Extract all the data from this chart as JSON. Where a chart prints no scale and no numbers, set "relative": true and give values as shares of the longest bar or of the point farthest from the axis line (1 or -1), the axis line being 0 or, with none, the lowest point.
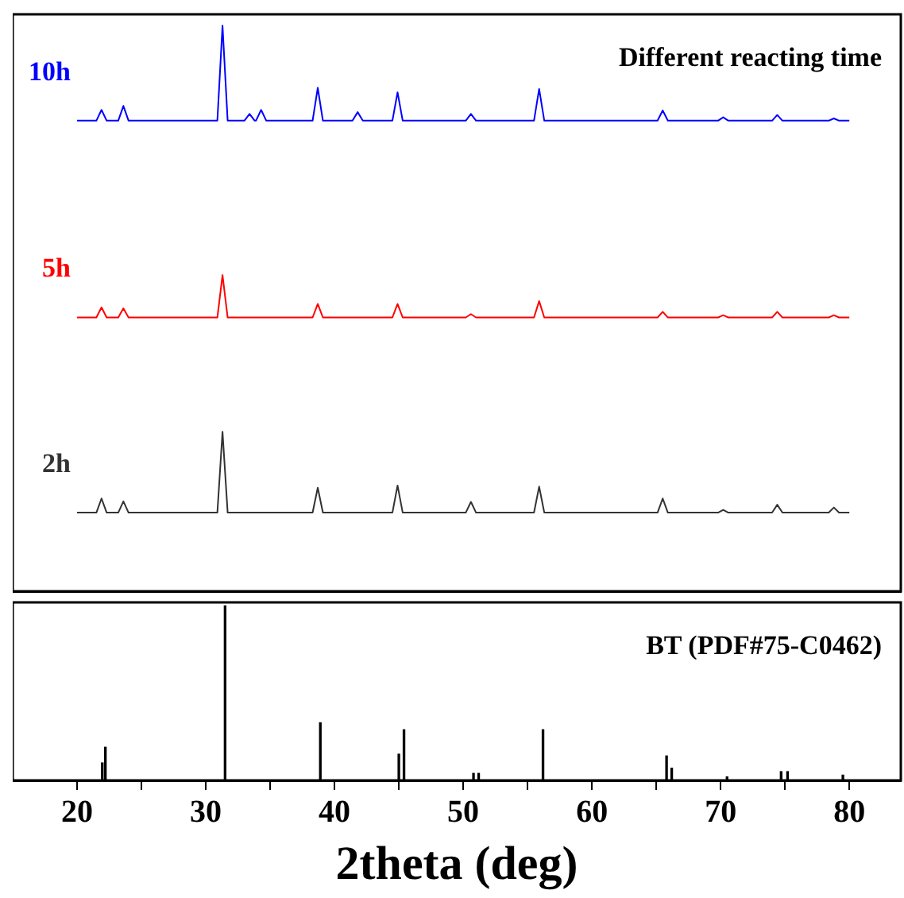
{
  "chart_data": [
    {
      "type": "line",
      "relative": true,
      "xlim": [
        15,
        84
      ],
      "tick_labels": false,
      "marker": "none",
      "annotations": [
        "Different reacting time"
      ],
      "series": [
        {
          "name": "10h",
          "color": "#0000ff",
          "x": [
            20,
            21.5,
            21.9,
            22.3,
            23.2,
            23.6,
            24,
            30.9,
            31.3,
            31.7,
            33,
            33.4,
            33.8,
            33.9,
            34.3,
            34.7,
            38.3,
            38.7,
            39.1,
            41.4,
            41.8,
            42.2,
            44.5,
            44.9,
            45.3,
            50.2,
            50.6,
            51,
            55.5,
            55.9,
            56.3,
            65.1,
            65.5,
            65.9,
            69.8,
            70.2,
            70.6,
            74,
            74.4,
            74.8,
            78.4,
            78.8,
            79.2,
            80
          ],
          "values": [
            0.832,
            0.832,
            0.851,
            0.832,
            0.832,
            0.858,
            0.832,
            0.832,
            1,
            0.832,
            0.832,
            0.844,
            0.832,
            0.832,
            0.851,
            0.832,
            0.832,
            0.89,
            0.832,
            0.832,
            0.847,
            0.832,
            0.832,
            0.882,
            0.832,
            0.832,
            0.844,
            0.832,
            0.832,
            0.888,
            0.832,
            0.832,
            0.85,
            0.832,
            0.832,
            0.838,
            0.832,
            0.832,
            0.842,
            0.832,
            0.832,
            0.836,
            0.832,
            0.832
          ]
        },
        {
          "name": "5h",
          "color": "#ff0000",
          "x": [
            20,
            21.5,
            21.9,
            22.3,
            23.2,
            23.6,
            24,
            30.9,
            31.3,
            31.7,
            38.3,
            38.7,
            39.1,
            44.5,
            44.9,
            45.3,
            50.2,
            50.6,
            51,
            55.5,
            55.9,
            56.3,
            65.1,
            65.5,
            65.9,
            69.8,
            70.2,
            70.6,
            74,
            74.4,
            74.8,
            78.4,
            78.8,
            79.2,
            80
          ],
          "values": [
            0.484,
            0.484,
            0.502,
            0.484,
            0.484,
            0.5,
            0.484,
            0.484,
            0.559,
            0.484,
            0.484,
            0.508,
            0.484,
            0.484,
            0.508,
            0.484,
            0.484,
            0.49,
            0.484,
            0.484,
            0.513,
            0.484,
            0.484,
            0.494,
            0.484,
            0.484,
            0.488,
            0.484,
            0.484,
            0.494,
            0.484,
            0.484,
            0.488,
            0.484,
            0.484
          ]
        },
        {
          "name": "2h",
          "color": "#333333",
          "x": [
            20,
            21.5,
            21.9,
            22.3,
            23.2,
            23.6,
            24,
            30.9,
            31.3,
            31.7,
            38.3,
            38.7,
            39.1,
            44.5,
            44.9,
            45.3,
            50.2,
            50.6,
            51,
            55.5,
            55.9,
            56.3,
            65.1,
            65.5,
            65.9,
            69.8,
            70.2,
            70.6,
            74,
            74.4,
            74.8,
            78.4,
            78.8,
            79.2,
            80
          ],
          "values": [
            0.139,
            0.139,
            0.164,
            0.139,
            0.139,
            0.159,
            0.139,
            0.139,
            0.282,
            0.139,
            0.139,
            0.183,
            0.139,
            0.139,
            0.187,
            0.139,
            0.139,
            0.158,
            0.139,
            0.139,
            0.185,
            0.139,
            0.139,
            0.164,
            0.139,
            0.139,
            0.144,
            0.139,
            0.139,
            0.153,
            0.139,
            0.139,
            0.148,
            0.139,
            0.139
          ]
        }
      ]
    },
    {
      "type": "bar",
      "relative": true,
      "xlim": [
        15,
        84
      ],
      "tick_labels": "x",
      "xlabel": "2theta (deg)",
      "annotations": [
        "BT (PDF#75-C0462)"
      ],
      "color": "#000000",
      "xticks": [
        20,
        {
          "value": 25,
          "label": null
        },
        30,
        {
          "value": 35,
          "label": null
        },
        40,
        {
          "value": 45,
          "label": null
        },
        50,
        {
          "value": 55,
          "label": null
        },
        60,
        {
          "value": 65,
          "label": null
        },
        70,
        {
          "value": 75,
          "label": null
        },
        80
      ],
      "x": [
        21.96,
        22.2,
        31.5,
        38.9,
        45.0,
        45.4,
        50.8,
        51.2,
        56.2,
        65.8,
        66.2,
        70.5,
        74.7,
        75.2,
        79.5
      ],
      "values": [
        0.1,
        0.19,
        1,
        0.33,
        0.15,
        0.29,
        0.04,
        0.04,
        0.29,
        0.14,
        0.07,
        0.02,
        0.05,
        0.05,
        0.03
      ]
    }
  ]
}
